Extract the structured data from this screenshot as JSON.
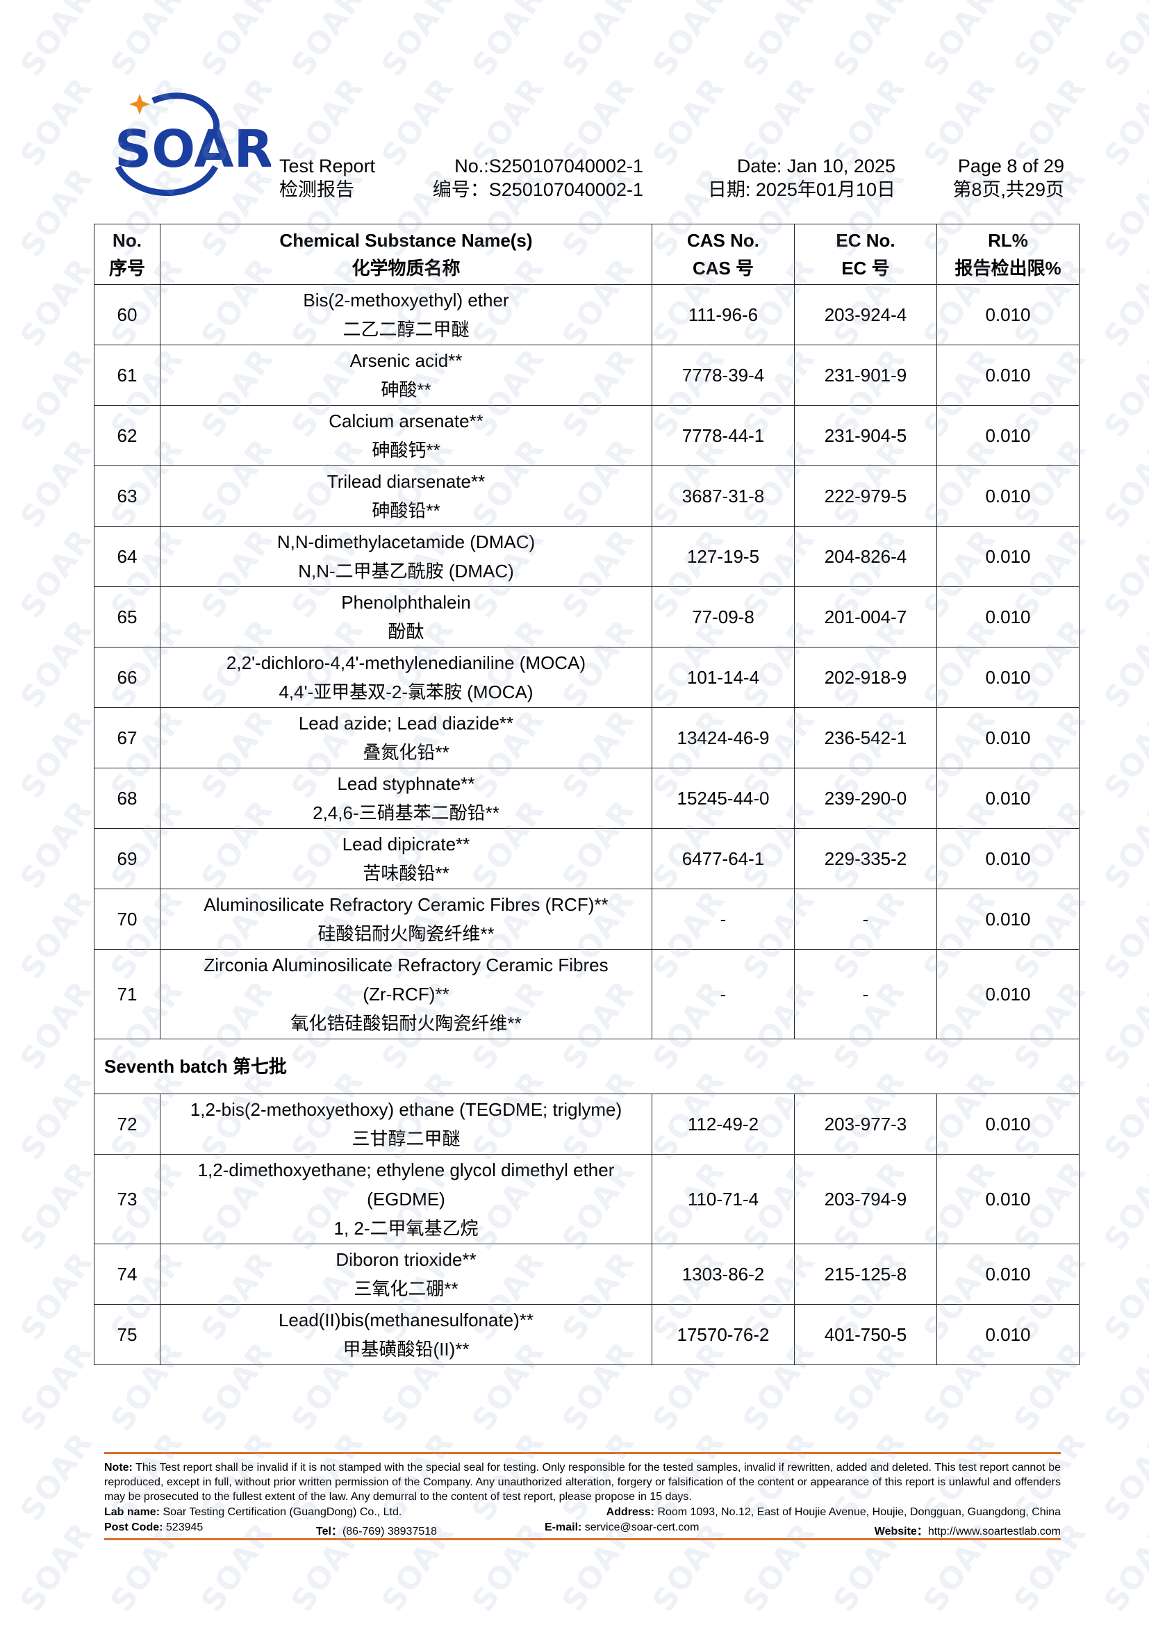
{
  "logo": {
    "text": "SOAR",
    "colors": {
      "blue": "#1b3fa0",
      "orange": "#f08a1c"
    }
  },
  "watermark": "SOAR",
  "header": {
    "title_en": "Test Report",
    "title_cn": "检测报告",
    "no_en": "No.:S250107040002-1",
    "no_cn": "编号：S250107040002-1",
    "date_en": "Date: Jan 10, 2025",
    "date_cn": "日期: 2025年01月10日",
    "page_en": "Page 8 of 29",
    "page_cn": "第8页,共29页"
  },
  "table": {
    "columns": [
      {
        "en": "No.",
        "cn": "序号"
      },
      {
        "en": "Chemical Substance Name(s)",
        "cn": "化学物质名称"
      },
      {
        "en": "CAS No.",
        "cn": "CAS 号"
      },
      {
        "en": "EC No.",
        "cn": "EC 号"
      },
      {
        "en": "RL%",
        "cn": "报告检出限%"
      }
    ],
    "rows": [
      {
        "no": "60",
        "name": [
          "Bis(2-methoxyethyl) ether",
          "二乙二醇二甲醚"
        ],
        "cas": "111-96-6",
        "ec": "203-924-4",
        "rl": "0.010"
      },
      {
        "no": "61",
        "name": [
          "Arsenic acid**",
          "砷酸**"
        ],
        "cas": "7778-39-4",
        "ec": "231-901-9",
        "rl": "0.010"
      },
      {
        "no": "62",
        "name": [
          "Calcium arsenate**",
          "砷酸钙**"
        ],
        "cas": "7778-44-1",
        "ec": "231-904-5",
        "rl": "0.010"
      },
      {
        "no": "63",
        "name": [
          "Trilead diarsenate**",
          "砷酸铅**"
        ],
        "cas": "3687-31-8",
        "ec": "222-979-5",
        "rl": "0.010"
      },
      {
        "no": "64",
        "name": [
          "N,N-dimethylacetamide (DMAC)",
          "N,N-二甲基乙酰胺 (DMAC)"
        ],
        "cas": "127-19-5",
        "ec": "204-826-4",
        "rl": "0.010"
      },
      {
        "no": "65",
        "name": [
          "Phenolphthalein",
          "酚酞"
        ],
        "cas": "77-09-8",
        "ec": "201-004-7",
        "rl": "0.010"
      },
      {
        "no": "66",
        "name": [
          "2,2'-dichloro-4,4'-methylenedianiline (MOCA)",
          "4,4'-亚甲基双-2-氯苯胺 (MOCA)"
        ],
        "cas": "101-14-4",
        "ec": "202-918-9",
        "rl": "0.010"
      },
      {
        "no": "67",
        "name": [
          "Lead azide; Lead diazide**",
          "叠氮化铅**"
        ],
        "cas": "13424-46-9",
        "ec": "236-542-1",
        "rl": "0.010"
      },
      {
        "no": "68",
        "name": [
          "Lead styphnate**",
          "2,4,6-三硝基苯二酚铅**"
        ],
        "cas": "15245-44-0",
        "ec": "239-290-0",
        "rl": "0.010"
      },
      {
        "no": "69",
        "name": [
          "Lead dipicrate**",
          "苦味酸铅**"
        ],
        "cas": "6477-64-1",
        "ec": "229-335-2",
        "rl": "0.010"
      },
      {
        "no": "70",
        "name": [
          "Aluminosilicate Refractory Ceramic Fibres (RCF)**",
          "硅酸铝耐火陶瓷纤维**"
        ],
        "cas": "-",
        "ec": "-",
        "rl": "0.010"
      },
      {
        "no": "71",
        "name": [
          "Zirconia Aluminosilicate Refractory Ceramic Fibres",
          "(Zr-RCF)**",
          "氧化锆硅酸铝耐火陶瓷纤维**"
        ],
        "cas": "-",
        "ec": "-",
        "rl": "0.010"
      },
      {
        "batch": "Seventh batch  第七批"
      },
      {
        "no": "72",
        "name": [
          "1,2-bis(2-methoxyethoxy) ethane (TEGDME; triglyme)",
          "三甘醇二甲醚"
        ],
        "cas": "112-49-2",
        "ec": "203-977-3",
        "rl": "0.010"
      },
      {
        "no": "73",
        "name": [
          "1,2-dimethoxyethane; ethylene glycol dimethyl ether",
          "(EGDME)",
          "1, 2-二甲氧基乙烷"
        ],
        "cas": "110-71-4",
        "ec": "203-794-9",
        "rl": "0.010"
      },
      {
        "no": "74",
        "name": [
          "Diboron trioxide**",
          "三氧化二硼**"
        ],
        "cas": "1303-86-2",
        "ec": "215-125-8",
        "rl": "0.010"
      },
      {
        "no": "75",
        "name": [
          "Lead(II)bis(methanesulfonate)**",
          "甲基磺酸铅(II)**"
        ],
        "cas": "17570-76-2",
        "ec": "401-750-5",
        "rl": "0.010"
      }
    ]
  },
  "footer": {
    "accent": "#d9702a",
    "note_label": "Note:",
    "note_text": " This Test report shall be invalid if it is not stamped with the special seal for testing. Only responsible for the tested samples, invalid if rewritten, added and deleted. This test report cannot be reproduced, except in full, without prior written permission of the Company.   Any unauthorized alteration, forgery or falsification of the content or appearance of this report is unlawful and offenders may be prosecuted to the fullest extent of the law. Any demurral to the content of test report, please propose in 15 days.",
    "lab_label": "Lab name:",
    "lab": " Soar Testing Certification (GuangDong) Co., Ltd.",
    "address_label": "Address:",
    "address": " Room 1093, No.12, East of Houjie Avenue, Houjie, Dongguan, Guangdong, China",
    "post_label": "Post Code:",
    "post": " 523945",
    "tel_label": "Tel：",
    "tel": "(86-769) 38937518",
    "email_label": "E-mail:",
    "email": " service@soar-cert.com",
    "web_label": "Website：",
    "web": "http://www.soartestlab.com"
  }
}
